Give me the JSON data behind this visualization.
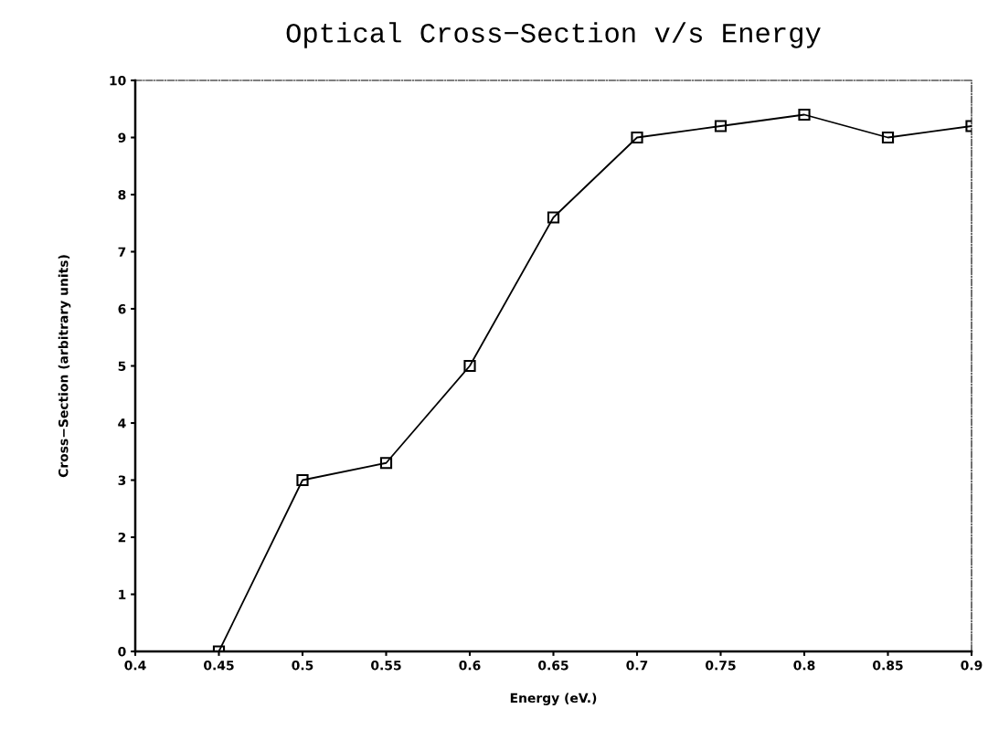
{
  "chart_data": {
    "type": "line",
    "title": "Optical Cross−Section v/s Energy",
    "xlabel": "Energy (eV.)",
    "ylabel": "Cross−Section (arbitrary units)",
    "x": [
      0.45,
      0.5,
      0.55,
      0.6,
      0.65,
      0.7,
      0.75,
      0.8,
      0.85,
      0.9
    ],
    "series": [
      {
        "color": "#000000",
        "values": [
          0,
          3.0,
          3.3,
          5.0,
          7.6,
          9.0,
          9.2,
          9.4,
          9.0,
          9.2
        ]
      }
    ],
    "xlim": [
      0.4,
      0.9
    ],
    "xticks": [
      0.4,
      0.45,
      0.5,
      0.55,
      0.6,
      0.65,
      0.7,
      0.75,
      0.8,
      0.85,
      0.9
    ],
    "ylim": [
      0,
      10
    ],
    "yticks": [
      0,
      1,
      2,
      3,
      4,
      5,
      6,
      7,
      8,
      9,
      10
    ],
    "grid": false,
    "legend": false,
    "marker": "square",
    "line_style": "solid"
  }
}
